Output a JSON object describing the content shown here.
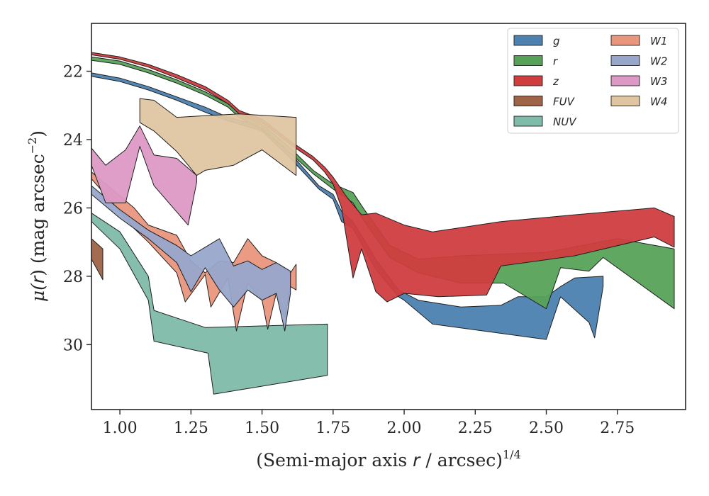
{
  "chart_data": {
    "type": "area",
    "xlabel": "(Semi-major axis r / arcsec)^{1/4}",
    "xlabel_parts": {
      "main": "(Semi-major axis ",
      "var": "r",
      "rest": " / arcsec)",
      "sup": "1/4"
    },
    "ylabel": "μ(r) (mag arcsec^{-2})",
    "ylabel_parts": {
      "mu": "μ(",
      "var": "r",
      "rest": ") (mag arcsec",
      "sup": "−2",
      "close": ")"
    },
    "xlim": [
      0.9,
      2.99
    ],
    "ylim": [
      31.9,
      20.6
    ],
    "x_ticks": [
      1.0,
      1.25,
      1.5,
      1.75,
      2.0,
      2.25,
      2.5,
      2.75
    ],
    "x_tick_labels": [
      "1.00",
      "1.25",
      "1.50",
      "1.75",
      "2.00",
      "2.25",
      "2.50",
      "2.75"
    ],
    "y_ticks": [
      22,
      24,
      26,
      28,
      30
    ],
    "y_tick_labels": [
      "22",
      "24",
      "26",
      "28",
      "30"
    ],
    "legend_position": "top-right",
    "legend_columns": 2,
    "series": [
      {
        "name": "g",
        "color": "#4c81b0",
        "upper": [
          [
            0.9,
            22.05
          ],
          [
            1.0,
            22.2
          ],
          [
            1.1,
            22.45
          ],
          [
            1.2,
            22.75
          ],
          [
            1.3,
            23.05
          ],
          [
            1.38,
            23.35
          ],
          [
            1.5,
            23.6
          ],
          [
            1.6,
            24.4
          ],
          [
            1.7,
            25.35
          ],
          [
            1.75,
            25.6
          ],
          [
            1.78,
            26.1
          ],
          [
            1.82,
            26.4
          ],
          [
            1.9,
            27.5
          ],
          [
            1.98,
            28.4
          ],
          [
            2.05,
            28.7
          ],
          [
            2.2,
            28.9
          ],
          [
            2.34,
            28.85
          ],
          [
            2.4,
            28.6
          ],
          [
            2.5,
            28.6
          ],
          [
            2.55,
            28.3
          ],
          [
            2.6,
            28.05
          ],
          [
            2.7,
            28.0
          ]
        ],
        "lower": [
          [
            0.9,
            22.15
          ],
          [
            1.0,
            22.3
          ],
          [
            1.1,
            22.55
          ],
          [
            1.2,
            22.85
          ],
          [
            1.3,
            23.2
          ],
          [
            1.38,
            23.45
          ],
          [
            1.5,
            23.75
          ],
          [
            1.6,
            24.55
          ],
          [
            1.7,
            25.45
          ],
          [
            1.75,
            25.75
          ],
          [
            1.78,
            26.4
          ],
          [
            1.82,
            26.6
          ],
          [
            1.9,
            27.8
          ],
          [
            1.98,
            28.6
          ],
          [
            2.0,
            28.7
          ],
          [
            2.1,
            29.4
          ],
          [
            2.5,
            29.85
          ],
          [
            2.55,
            28.6
          ],
          [
            2.65,
            29.35
          ],
          [
            2.67,
            29.8
          ],
          [
            2.7,
            28.3
          ]
        ]
      },
      {
        "name": "r",
        "color": "#57a259",
        "upper": [
          [
            0.9,
            21.58
          ],
          [
            1.0,
            21.7
          ],
          [
            1.1,
            21.95
          ],
          [
            1.2,
            22.25
          ],
          [
            1.3,
            22.6
          ],
          [
            1.38,
            22.95
          ],
          [
            1.42,
            23.25
          ],
          [
            1.5,
            23.55
          ],
          [
            1.6,
            24.25
          ],
          [
            1.68,
            24.9
          ],
          [
            1.75,
            25.3
          ],
          [
            1.82,
            25.55
          ],
          [
            1.86,
            26.05
          ],
          [
            1.95,
            27.1
          ],
          [
            2.05,
            27.5
          ],
          [
            2.2,
            27.4
          ],
          [
            2.5,
            27.3
          ],
          [
            2.75,
            26.9
          ],
          [
            2.95,
            27.2
          ]
        ],
        "lower": [
          [
            0.9,
            21.68
          ],
          [
            1.0,
            21.8
          ],
          [
            1.1,
            22.05
          ],
          [
            1.2,
            22.35
          ],
          [
            1.3,
            22.7
          ],
          [
            1.38,
            23.05
          ],
          [
            1.42,
            23.35
          ],
          [
            1.5,
            23.7
          ],
          [
            1.6,
            24.4
          ],
          [
            1.68,
            25.0
          ],
          [
            1.75,
            25.45
          ],
          [
            1.82,
            25.85
          ],
          [
            1.86,
            26.4
          ],
          [
            1.95,
            27.45
          ],
          [
            2.05,
            27.9
          ],
          [
            2.2,
            28.2
          ],
          [
            2.35,
            28.2
          ],
          [
            2.5,
            28.95
          ],
          [
            2.55,
            27.75
          ],
          [
            2.65,
            27.85
          ],
          [
            2.7,
            27.45
          ],
          [
            2.95,
            28.95
          ]
        ]
      },
      {
        "name": "z",
        "color": "#d03d3f",
        "upper": [
          [
            0.9,
            21.45
          ],
          [
            1.0,
            21.58
          ],
          [
            1.1,
            21.8
          ],
          [
            1.2,
            22.1
          ],
          [
            1.3,
            22.45
          ],
          [
            1.38,
            22.85
          ],
          [
            1.42,
            23.15
          ],
          [
            1.5,
            23.4
          ],
          [
            1.6,
            24.05
          ],
          [
            1.68,
            24.5
          ],
          [
            1.72,
            24.8
          ],
          [
            1.75,
            25.1
          ],
          [
            1.8,
            25.7
          ],
          [
            1.85,
            26.2
          ],
          [
            1.9,
            26.15
          ],
          [
            2.0,
            26.5
          ],
          [
            2.1,
            26.7
          ],
          [
            2.34,
            26.4
          ],
          [
            2.6,
            26.2
          ],
          [
            2.88,
            26.0
          ],
          [
            2.95,
            26.25
          ]
        ],
        "lower": [
          [
            0.9,
            21.52
          ],
          [
            1.0,
            21.65
          ],
          [
            1.1,
            21.88
          ],
          [
            1.2,
            22.2
          ],
          [
            1.3,
            22.55
          ],
          [
            1.38,
            22.95
          ],
          [
            1.42,
            23.25
          ],
          [
            1.5,
            23.5
          ],
          [
            1.6,
            24.15
          ],
          [
            1.68,
            24.6
          ],
          [
            1.72,
            24.95
          ],
          [
            1.75,
            25.3
          ],
          [
            1.78,
            26.0
          ],
          [
            1.82,
            28.05
          ],
          [
            1.85,
            27.2
          ],
          [
            1.9,
            28.45
          ],
          [
            1.94,
            28.75
          ],
          [
            2.0,
            28.5
          ],
          [
            2.12,
            28.6
          ],
          [
            2.29,
            28.55
          ],
          [
            2.34,
            27.7
          ],
          [
            2.6,
            27.4
          ],
          [
            2.88,
            26.85
          ],
          [
            2.95,
            27.15
          ]
        ]
      },
      {
        "name": "FUV",
        "color": "#9e6447",
        "upper": [
          [
            0.9,
            26.9
          ],
          [
            0.94,
            27.2
          ]
        ],
        "lower": [
          [
            0.9,
            27.5
          ],
          [
            0.94,
            28.1
          ]
        ]
      },
      {
        "name": "NUV",
        "color": "#7fbba9",
        "upper": [
          [
            0.9,
            26.15
          ],
          [
            1.0,
            26.7
          ],
          [
            1.1,
            28.0
          ],
          [
            1.12,
            29.0
          ],
          [
            1.3,
            29.5
          ],
          [
            1.73,
            29.4
          ]
        ],
        "lower": [
          [
            0.9,
            26.4
          ],
          [
            1.0,
            27.2
          ],
          [
            1.1,
            28.7
          ],
          [
            1.12,
            29.9
          ],
          [
            1.31,
            30.25
          ],
          [
            1.33,
            31.45
          ],
          [
            1.73,
            30.9
          ]
        ]
      },
      {
        "name": "W1",
        "color": "#ea967c",
        "upper": [
          [
            0.9,
            24.95
          ],
          [
            1.0,
            25.65
          ],
          [
            1.05,
            26.0
          ],
          [
            1.1,
            26.5
          ],
          [
            1.2,
            26.8
          ],
          [
            1.25,
            27.55
          ],
          [
            1.3,
            27.9
          ],
          [
            1.35,
            27.55
          ],
          [
            1.4,
            27.6
          ],
          [
            1.45,
            26.9
          ],
          [
            1.5,
            27.4
          ],
          [
            1.55,
            27.6
          ],
          [
            1.6,
            27.9
          ],
          [
            1.62,
            27.65
          ]
        ],
        "lower": [
          [
            0.9,
            25.15
          ],
          [
            1.0,
            26.1
          ],
          [
            1.05,
            26.6
          ],
          [
            1.1,
            27.0
          ],
          [
            1.2,
            27.9
          ],
          [
            1.23,
            28.75
          ],
          [
            1.3,
            27.95
          ],
          [
            1.32,
            28.9
          ],
          [
            1.38,
            28.05
          ],
          [
            1.41,
            29.6
          ],
          [
            1.45,
            28.2
          ],
          [
            1.5,
            28.7
          ],
          [
            1.52,
            29.55
          ],
          [
            1.55,
            28.5
          ],
          [
            1.58,
            29.2
          ],
          [
            1.6,
            28.3
          ],
          [
            1.62,
            28.4
          ]
        ]
      },
      {
        "name": "W2",
        "color": "#98a6cb",
        "upper": [
          [
            0.9,
            25.35
          ],
          [
            1.0,
            26.05
          ],
          [
            1.1,
            26.65
          ],
          [
            1.2,
            27.1
          ],
          [
            1.25,
            27.4
          ],
          [
            1.3,
            27.15
          ],
          [
            1.35,
            26.9
          ],
          [
            1.4,
            27.7
          ],
          [
            1.45,
            27.55
          ],
          [
            1.5,
            27.8
          ],
          [
            1.55,
            27.6
          ],
          [
            1.6,
            27.85
          ]
        ],
        "lower": [
          [
            0.9,
            25.6
          ],
          [
            1.0,
            26.3
          ],
          [
            1.1,
            26.9
          ],
          [
            1.2,
            27.6
          ],
          [
            1.25,
            28.45
          ],
          [
            1.3,
            27.75
          ],
          [
            1.35,
            28.4
          ],
          [
            1.4,
            28.9
          ],
          [
            1.45,
            28.4
          ],
          [
            1.5,
            28.7
          ],
          [
            1.55,
            28.5
          ],
          [
            1.58,
            29.6
          ],
          [
            1.6,
            28.5
          ]
        ]
      },
      {
        "name": "W3",
        "color": "#dd99c5",
        "upper": [
          [
            0.9,
            24.25
          ],
          [
            0.95,
            24.75
          ],
          [
            1.02,
            24.3
          ],
          [
            1.07,
            23.6
          ],
          [
            1.12,
            24.45
          ],
          [
            1.2,
            24.55
          ],
          [
            1.27,
            25.05
          ]
        ],
        "lower": [
          [
            0.9,
            24.75
          ],
          [
            0.95,
            25.85
          ],
          [
            1.02,
            25.85
          ],
          [
            1.07,
            24.2
          ],
          [
            1.12,
            25.35
          ],
          [
            1.24,
            26.5
          ],
          [
            1.27,
            25.25
          ]
        ]
      },
      {
        "name": "W4",
        "color": "#dfc5a1",
        "upper": [
          [
            1.07,
            22.8
          ],
          [
            1.12,
            22.85
          ],
          [
            1.2,
            23.35
          ],
          [
            1.3,
            23.3
          ],
          [
            1.42,
            23.25
          ],
          [
            1.62,
            23.35
          ]
        ],
        "lower": [
          [
            1.07,
            23.5
          ],
          [
            1.12,
            23.75
          ],
          [
            1.2,
            24.35
          ],
          [
            1.27,
            25.05
          ],
          [
            1.3,
            24.9
          ],
          [
            1.4,
            24.75
          ],
          [
            1.5,
            24.3
          ],
          [
            1.62,
            25.05
          ]
        ]
      }
    ]
  }
}
